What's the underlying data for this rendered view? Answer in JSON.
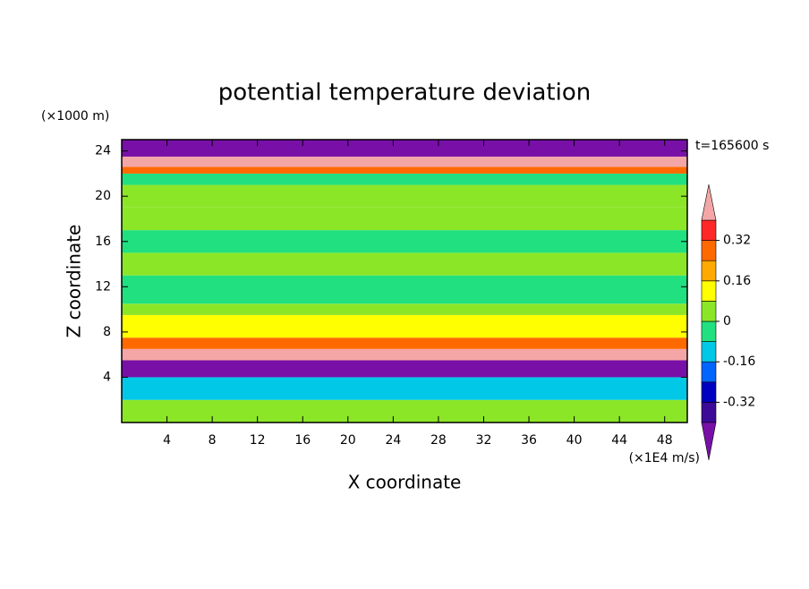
{
  "chart_data": {
    "type": "contour",
    "title": "potential temperature deviation",
    "x_label": "X coordinate",
    "y_label": "Z coordinate",
    "x_unit": "(×1E4 m/s)",
    "y_unit": "(×1000 m)",
    "annotation": "t=165600 s",
    "xlim": [
      0,
      50
    ],
    "xticks": [
      4,
      8,
      12,
      16,
      20,
      24,
      28,
      32,
      36,
      40,
      44,
      48
    ],
    "ylim": [
      0,
      25
    ],
    "yticks": [
      4,
      8,
      12,
      16,
      20,
      24
    ],
    "z_edges": [
      0,
      2,
      4,
      5.5,
      6.5,
      7.5,
      8.5,
      9.5,
      10.5,
      13,
      15,
      17,
      19,
      21,
      22,
      22.6,
      23.5,
      25
    ],
    "values": [
      0.02,
      -0.12,
      -0.45,
      0.45,
      0.28,
      0.14,
      0.1,
      0.02,
      -0.02,
      0.04,
      -0.02,
      0.04,
      0.02,
      -0.02,
      0.3,
      0.45,
      -0.45
    ],
    "levels": [
      -0.4,
      -0.32,
      -0.24,
      -0.16,
      -0.08,
      0,
      0.08,
      0.16,
      0.24,
      0.32,
      0.4
    ],
    "colors": [
      "#3c0a96",
      "#0000c0",
      "#0064ff",
      "#00c8e6",
      "#20e080",
      "#8ce628",
      "#ffff00",
      "#ffaa00",
      "#ff6a00",
      "#ff2828"
    ],
    "extend_colors": [
      "#7810a8",
      "#f4a6a6"
    ],
    "cbar_ticks": [
      0.32,
      0.16,
      0,
      -0.16,
      -0.32
    ]
  }
}
